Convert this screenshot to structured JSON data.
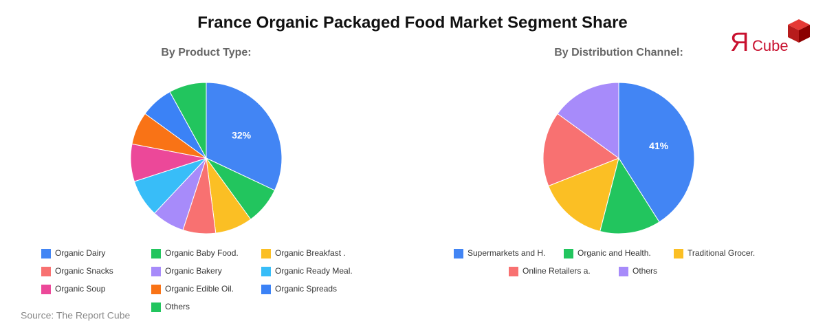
{
  "title": "France Organic Packaged Food Market Segment Share",
  "logo": {
    "mark": "Я",
    "text": "Cube"
  },
  "source": "Source: The Report Cube",
  "chart_data": [
    {
      "type": "pie",
      "subtitle": "By Product Type:",
      "categories": [
        "Organic Dairy",
        "Organic Baby Food.",
        "Organic Breakfast .",
        "Organic Snacks",
        "Organic Bakery",
        "Organic Ready Meal.",
        "Organic Soup",
        "Organic Edible Oil.",
        "Organic Spreads",
        "Others"
      ],
      "values": [
        32,
        8,
        8,
        7,
        7,
        8,
        8,
        7,
        7,
        8
      ],
      "value_labels": [
        "32%",
        null,
        null,
        null,
        null,
        null,
        null,
        null,
        null,
        null
      ],
      "colors": [
        "#4285f4",
        "#22c55e",
        "#fbbf24",
        "#f87171",
        "#a78bfa",
        "#38bdf8",
        "#ec4899",
        "#f97316",
        "#3b82f6",
        "#22c55e"
      ]
    },
    {
      "type": "pie",
      "subtitle": "By Distribution Channel:",
      "categories": [
        "Supermarkets and H.",
        "Organic and Health.",
        "Traditional Grocer.",
        "Online Retailers a.",
        "Others"
      ],
      "values": [
        41,
        13,
        15,
        16,
        15
      ],
      "value_labels": [
        "41%",
        null,
        null,
        null,
        null
      ],
      "colors": [
        "#4285f4",
        "#22c55e",
        "#fbbf24",
        "#f87171",
        "#a78bfa"
      ]
    }
  ]
}
